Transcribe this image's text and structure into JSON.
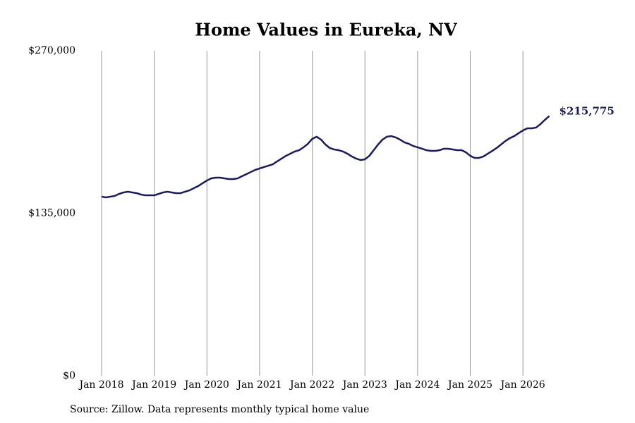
{
  "chart_data": {
    "type": "line",
    "title": "Home Values in Eureka, NV",
    "source": "Source: Zillow. Data represents monthly typical home value",
    "x": [
      "2018-01",
      "2018-02",
      "2018-03",
      "2018-04",
      "2018-05",
      "2018-06",
      "2018-07",
      "2018-08",
      "2018-09",
      "2018-10",
      "2018-11",
      "2018-12",
      "2019-01",
      "2019-02",
      "2019-03",
      "2019-04",
      "2019-05",
      "2019-06",
      "2019-07",
      "2019-08",
      "2019-09",
      "2019-10",
      "2019-11",
      "2019-12",
      "2020-01",
      "2020-02",
      "2020-03",
      "2020-04",
      "2020-05",
      "2020-06",
      "2020-07",
      "2020-08",
      "2020-09",
      "2020-10",
      "2020-11",
      "2020-12",
      "2021-01",
      "2021-02",
      "2021-03",
      "2021-04",
      "2021-05",
      "2021-06",
      "2021-07",
      "2021-08",
      "2021-09",
      "2021-10",
      "2021-11",
      "2021-12",
      "2022-01",
      "2022-02",
      "2022-03",
      "2022-04",
      "2022-05",
      "2022-06",
      "2022-07",
      "2022-08",
      "2022-09",
      "2022-10",
      "2022-11",
      "2022-12",
      "2023-01",
      "2023-02",
      "2023-03",
      "2023-04",
      "2023-05",
      "2023-06",
      "2023-07",
      "2023-08",
      "2023-09",
      "2023-10",
      "2023-11",
      "2023-12",
      "2024-01",
      "2024-02",
      "2024-03",
      "2024-04",
      "2024-05",
      "2024-06",
      "2024-07",
      "2024-08",
      "2024-09",
      "2024-10",
      "2024-11",
      "2024-12",
      "2025-01",
      "2025-02",
      "2025-03",
      "2025-04",
      "2025-05",
      "2025-06",
      "2025-07",
      "2025-08",
      "2025-09",
      "2025-10",
      "2025-11",
      "2025-12",
      "2026-01",
      "2026-02",
      "2026-03",
      "2026-04",
      "2026-05",
      "2026-06",
      "2026-07"
    ],
    "series": [
      {
        "name": "Home value",
        "color": "#1a1a5e",
        "values": [
          148800,
          148200,
          148800,
          149400,
          151100,
          152300,
          152900,
          152300,
          151700,
          150500,
          149900,
          149900,
          149900,
          151100,
          152300,
          152900,
          152300,
          151700,
          151700,
          152900,
          154000,
          155800,
          157600,
          159900,
          162200,
          164000,
          164600,
          164600,
          164000,
          163400,
          163400,
          164000,
          165800,
          167500,
          169300,
          171000,
          172200,
          173400,
          174500,
          175700,
          178100,
          180400,
          182700,
          184500,
          186300,
          187400,
          189800,
          192700,
          196800,
          198600,
          196200,
          192100,
          189200,
          188000,
          187400,
          186300,
          184500,
          182200,
          180400,
          179200,
          179800,
          182700,
          187400,
          192100,
          196200,
          198600,
          199100,
          198000,
          196200,
          193900,
          192700,
          190900,
          189800,
          188600,
          187400,
          186800,
          186800,
          187400,
          188600,
          188600,
          188000,
          187400,
          187400,
          185700,
          182700,
          181000,
          181000,
          182200,
          184500,
          186800,
          189200,
          192100,
          195000,
          197400,
          199100,
          201500,
          203800,
          205600,
          205600,
          206200,
          209100,
          212600,
          215775
        ]
      }
    ],
    "end_label": "$215,775",
    "ylim": [
      0,
      270000
    ],
    "yticks": [
      {
        "value": 0,
        "label": "$0"
      },
      {
        "value": 135000,
        "label": "$135,000"
      },
      {
        "value": 270000,
        "label": "$270,000"
      }
    ],
    "xticks": [
      {
        "value": "2018-01",
        "label": "Jan 2018"
      },
      {
        "value": "2019-01",
        "label": "Jan 2019"
      },
      {
        "value": "2020-01",
        "label": "Jan 2020"
      },
      {
        "value": "2021-01",
        "label": "Jan 2021"
      },
      {
        "value": "2022-01",
        "label": "Jan 2022"
      },
      {
        "value": "2023-01",
        "label": "Jan 2023"
      },
      {
        "value": "2024-01",
        "label": "Jan 2024"
      },
      {
        "value": "2025-01",
        "label": "Jan 2025"
      },
      {
        "value": "2026-01",
        "label": "Jan 2026"
      }
    ],
    "grid": true
  }
}
